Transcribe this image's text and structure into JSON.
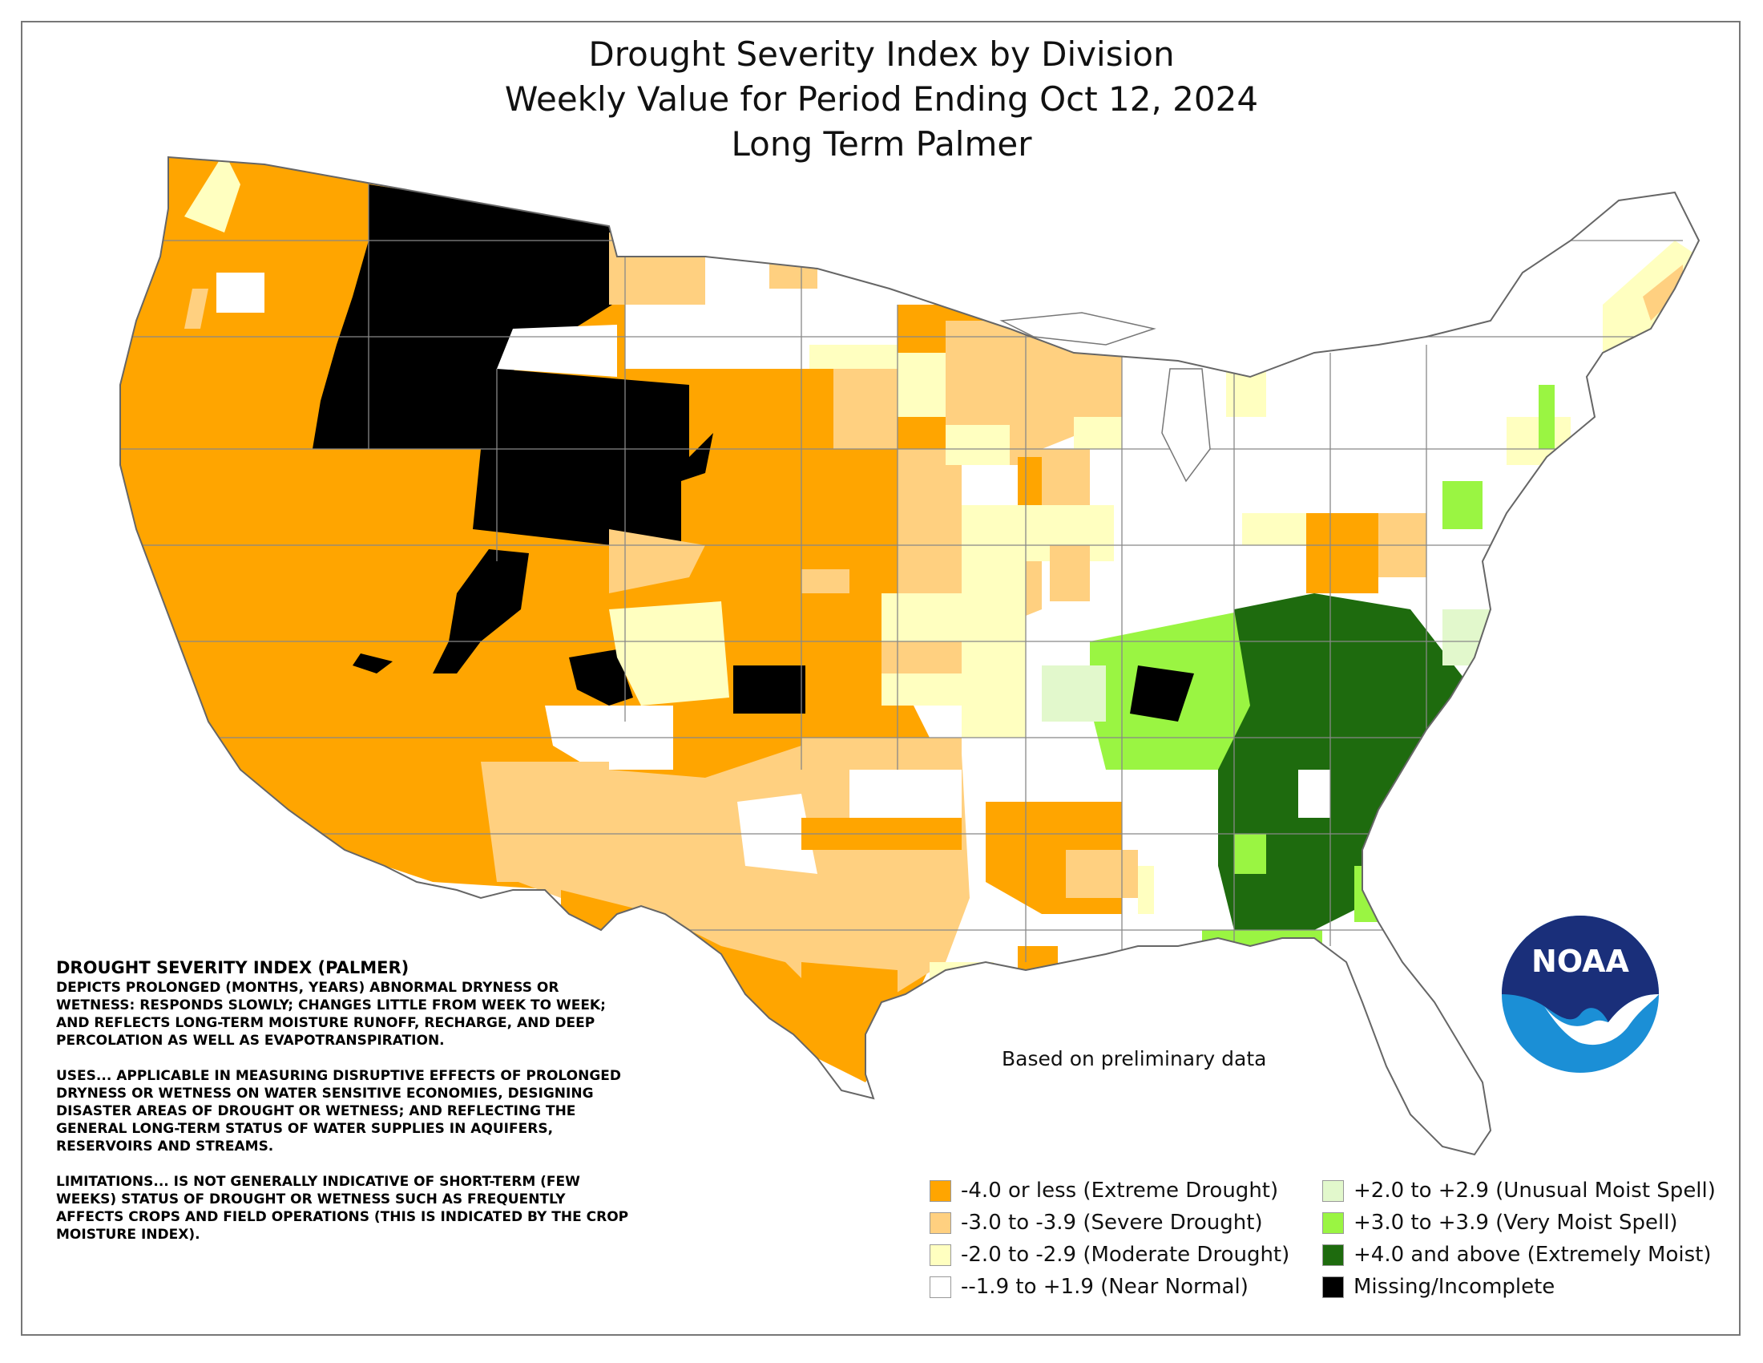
{
  "title": {
    "line1": "Drought Severity Index by Division",
    "line2": "Weekly Value for Period Ending Oct 12, 2024",
    "line3": "Long Term Palmer"
  },
  "description": {
    "heading": "DROUGHT SEVERITY INDEX (PALMER)",
    "para1": "DEPICTS PROLONGED (MONTHS, YEARS) ABNORMAL DRYNESS OR WETNESS: RESPONDS SLOWLY; CHANGES LITTLE FROM WEEK TO WEEK; AND REFLECTS LONG-TERM MOISTURE RUNOFF, RECHARGE, AND DEEP PERCOLATION AS WELL AS EVAPOTRANSPIRATION.",
    "para2": "USES... APPLICABLE IN MEASURING DISRUPTIVE EFFECTS OF PROLONGED DRYNESS OR WETNESS ON WATER SENSITIVE ECONOMIES, DESIGNING DISASTER AREAS OF DROUGHT OR WETNESS; AND REFLECTING THE GENERAL LONG-TERM STATUS OF WATER SUPPLIES IN AQUIFERS, RESERVOIRS AND STREAMS.",
    "para3": "LIMITATIONS... IS NOT GENERALLY INDICATIVE OF SHORT-TERM (FEW WEEKS) STATUS OF DROUGHT OR WETNESS SUCH AS FREQUENTLY AFFECTS CROPS AND FIELD OPERATIONS (THIS IS INDICATED BY THE CROP MOISTURE INDEX)."
  },
  "note": "Based on preliminary data",
  "logo": {
    "text": "NOAA",
    "icon": "noaa-logo"
  },
  "legend": [
    {
      "label": "-4.0 or less (Extreme Drought)",
      "color": "#FFA500"
    },
    {
      "label": "-3.0 to -3.9 (Severe Drought)",
      "color": "#FFD080"
    },
    {
      "label": "-2.0 to -2.9 (Moderate Drought)",
      "color": "#FFFFC0"
    },
    {
      "label": "--1.9 to +1.9 (Near Normal)",
      "color": "#FFFFFF"
    },
    {
      "label": "+2.0 to +2.9 (Unusual Moist Spell)",
      "color": "#E2F8CC"
    },
    {
      "label": "+3.0 to +3.9 (Very Moist Spell)",
      "color": "#9AF542"
    },
    {
      "label": "+4.0 and above (Extremely Moist)",
      "color": "#1E6B0E"
    },
    {
      "label": "Missing/Incomplete",
      "color": "#000000"
    }
  ]
}
